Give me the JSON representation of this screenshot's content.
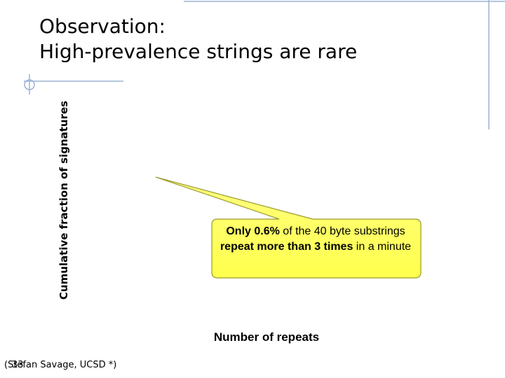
{
  "slide": {
    "title_line1": "Observation:",
    "title_line2": "High-prevalence strings are rare",
    "y_axis_label": "Cumulative fraction of signatures",
    "x_axis_label": "Number of repeats",
    "callout": {
      "part1": "Only ",
      "part2": "0.6%",
      "part3": " of the 40 byte substrings ",
      "part4": "repeat more than 3 times",
      "part5": " in a minute"
    },
    "footer": {
      "credit": "(Stefan Savage, UCSD *)",
      "page_number": "33"
    }
  },
  "colors": {
    "frame_line": "#9bb3d4",
    "callout_fill": "#ffff66",
    "callout_stroke": "#8a8a00"
  }
}
